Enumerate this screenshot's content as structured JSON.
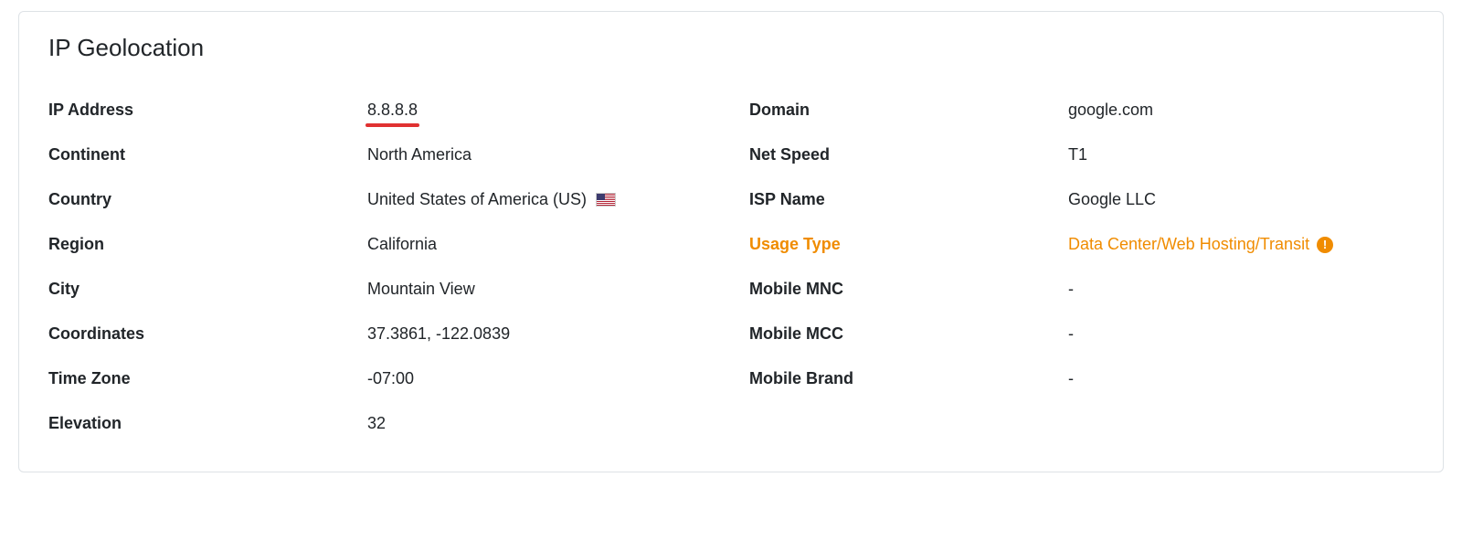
{
  "card": {
    "title": "IP Geolocation",
    "colors": {
      "border": "#dee2e6",
      "text": "#212529",
      "highlight": "#f08c00",
      "underline": "#e03131",
      "background": "#ffffff"
    },
    "left": [
      {
        "label": "IP Address",
        "value": "8.8.8.8",
        "underline": true
      },
      {
        "label": "Continent",
        "value": "North America"
      },
      {
        "label": "Country",
        "value": "United States of America (US)",
        "flag": "us"
      },
      {
        "label": "Region",
        "value": "California"
      },
      {
        "label": "City",
        "value": "Mountain View"
      },
      {
        "label": "Coordinates",
        "value": "37.3861, -122.0839"
      },
      {
        "label": "Time Zone",
        "value": "-07:00"
      },
      {
        "label": "Elevation",
        "value": "32"
      }
    ],
    "right": [
      {
        "label": "Domain",
        "value": "google.com"
      },
      {
        "label": "Net Speed",
        "value": "T1"
      },
      {
        "label": "ISP Name",
        "value": "Google LLC"
      },
      {
        "label": "Usage Type",
        "value": "Data Center/Web Hosting/Transit",
        "highlight": true,
        "info": true
      },
      {
        "label": "Mobile MNC",
        "value": "-"
      },
      {
        "label": "Mobile MCC",
        "value": "-"
      },
      {
        "label": "Mobile Brand",
        "value": "-"
      }
    ]
  }
}
